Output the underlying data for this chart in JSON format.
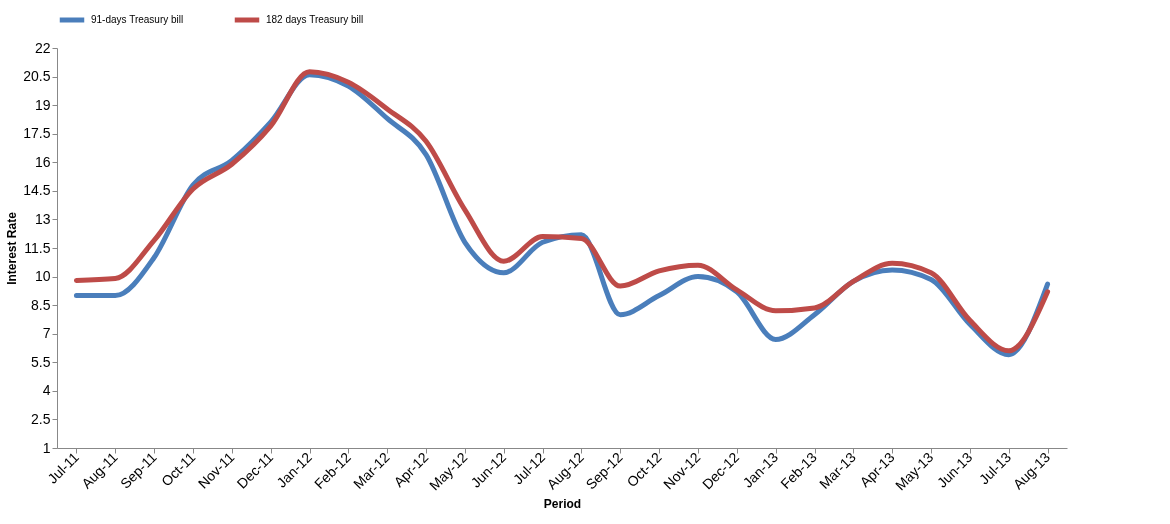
{
  "chart_data": {
    "type": "line",
    "xlabel": "Period",
    "ylabel": "Interest Rate",
    "categories": [
      "Jul-11",
      "Aug-11",
      "Sep-11",
      "Oct-11",
      "Nov-11",
      "Dec-11",
      "Jan-12",
      "Feb-12",
      "Mar-12",
      "Apr-12",
      "May-12",
      "Jun-12",
      "Jul-12",
      "Aug-12",
      "Sep-12",
      "Oct-12",
      "Nov-12",
      "Dec-12",
      "Jan-13",
      "Feb-13",
      "Mar-13",
      "Apr-13",
      "May-13",
      "Jun-13",
      "Jul-13",
      "Aug-13"
    ],
    "series": [
      {
        "name": "91-days Treasury bill",
        "color": "#4a7ebb",
        "values": [
          9.0,
          9.0,
          11.0,
          14.8,
          16.1,
          18.1,
          20.6,
          20.0,
          18.3,
          16.4,
          11.8,
          10.2,
          11.8,
          12.2,
          8.0,
          9.0,
          10.0,
          9.2,
          6.7,
          8.0,
          9.75,
          10.35,
          9.85,
          7.5,
          5.9,
          9.6
        ]
      },
      {
        "name": "182 days Treasury bill",
        "color": "#be4b48",
        "values": [
          9.8,
          9.9,
          11.9,
          14.6,
          15.9,
          17.9,
          20.75,
          20.2,
          18.8,
          17.1,
          13.5,
          10.8,
          12.1,
          12.0,
          9.5,
          10.3,
          10.6,
          9.3,
          8.2,
          8.35,
          9.75,
          10.7,
          10.2,
          7.7,
          6.1,
          9.2
        ]
      }
    ],
    "ylim": [
      1,
      22
    ],
    "yticks": [
      1,
      2.5,
      4,
      5.5,
      7,
      8.5,
      10,
      11.5,
      13,
      14.5,
      16,
      17.5,
      19,
      20.5,
      22
    ],
    "grid": false,
    "legend": "top",
    "marker": "none",
    "line_style": "solid"
  }
}
